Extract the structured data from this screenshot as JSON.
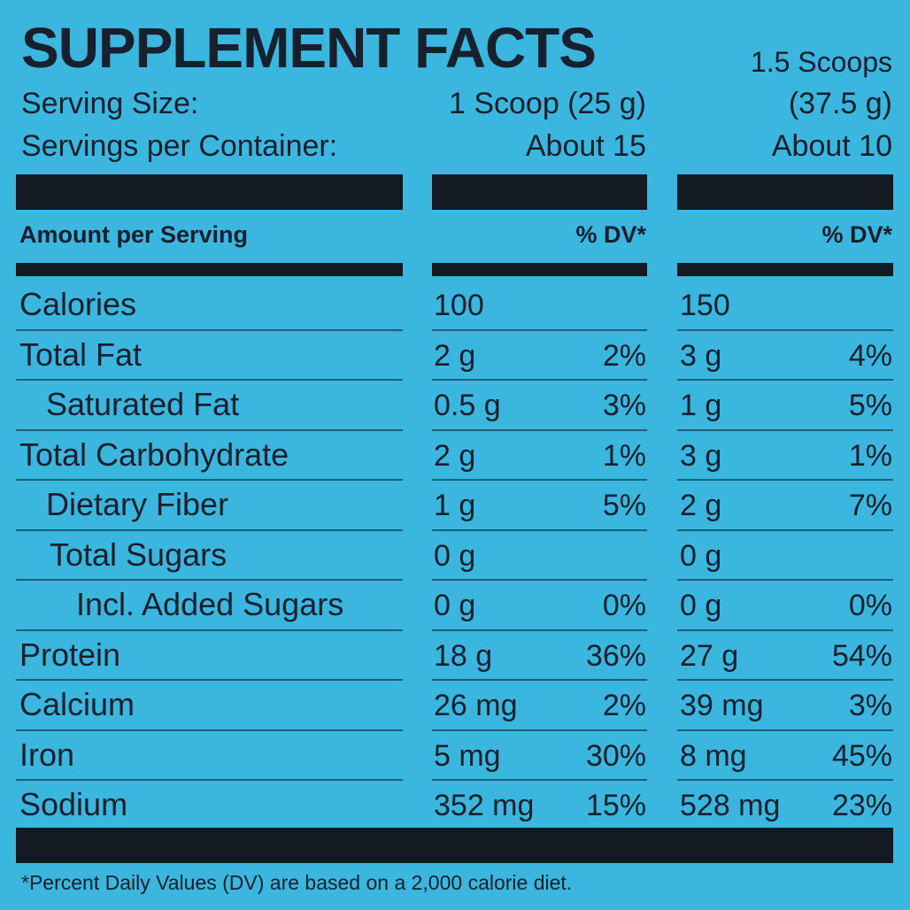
{
  "header": {
    "title": "SUPPLEMENT FACTS",
    "serving_size_label": "Serving Size:",
    "servings_per_container_label": "Servings per Container:",
    "column1_serving_size": "1 Scoop (25 g)",
    "column1_servings": "About 15",
    "column2_serving_size_line1": "1.5 Scoops",
    "column2_serving_size_line2": "(37.5 g)",
    "column2_servings": "About 10"
  },
  "table": {
    "amount_header": "Amount per Serving",
    "dv_header1": "% DV*",
    "dv_header2": "% DV*",
    "rows": [
      {
        "label": "Calories",
        "amount1": "100",
        "amount2": "150"
      },
      {
        "label": "Total Fat",
        "amount1": "2 g",
        "dv1": "2%",
        "amount2": "3 g",
        "dv2": "4%"
      },
      {
        "label": "Saturated Fat",
        "amount1": "0.5 g",
        "dv1": "3%",
        "amount2": "1 g",
        "dv2": "5%"
      },
      {
        "label": "Total Carbohydrate",
        "amount1": "2 g",
        "dv1": "1%",
        "amount2": "3 g",
        "dv2": "1%"
      },
      {
        "label": "Dietary Fiber",
        "amount1": "1 g",
        "dv1": "5%",
        "amount2": "2 g",
        "dv2": "7%"
      },
      {
        "label": "Total Sugars",
        "amount1": "0 g",
        "amount2": "0 g"
      },
      {
        "label": "Incl. Added Sugars",
        "amount1": "0 g",
        "dv1": "0%",
        "amount2": "0 g",
        "dv2": "0%"
      },
      {
        "label": "Protein",
        "amount1": "18 g",
        "dv1": "36%",
        "amount2": "27 g",
        "dv2": "54%"
      },
      {
        "label": "Calcium",
        "amount1": "26 mg",
        "dv1": "2%",
        "amount2": "39 mg",
        "dv2": "3%"
      },
      {
        "label": "Iron",
        "amount1": "5 mg",
        "dv1": "30%",
        "amount2": "8 mg",
        "dv2": "45%"
      },
      {
        "label": "Sodium",
        "amount1": "352 mg",
        "dv1": "15%",
        "amount2": "528 mg",
        "dv2": "23%"
      }
    ]
  },
  "footnote": "*Percent Daily Values (DV) are based on a 2,000 calorie diet."
}
